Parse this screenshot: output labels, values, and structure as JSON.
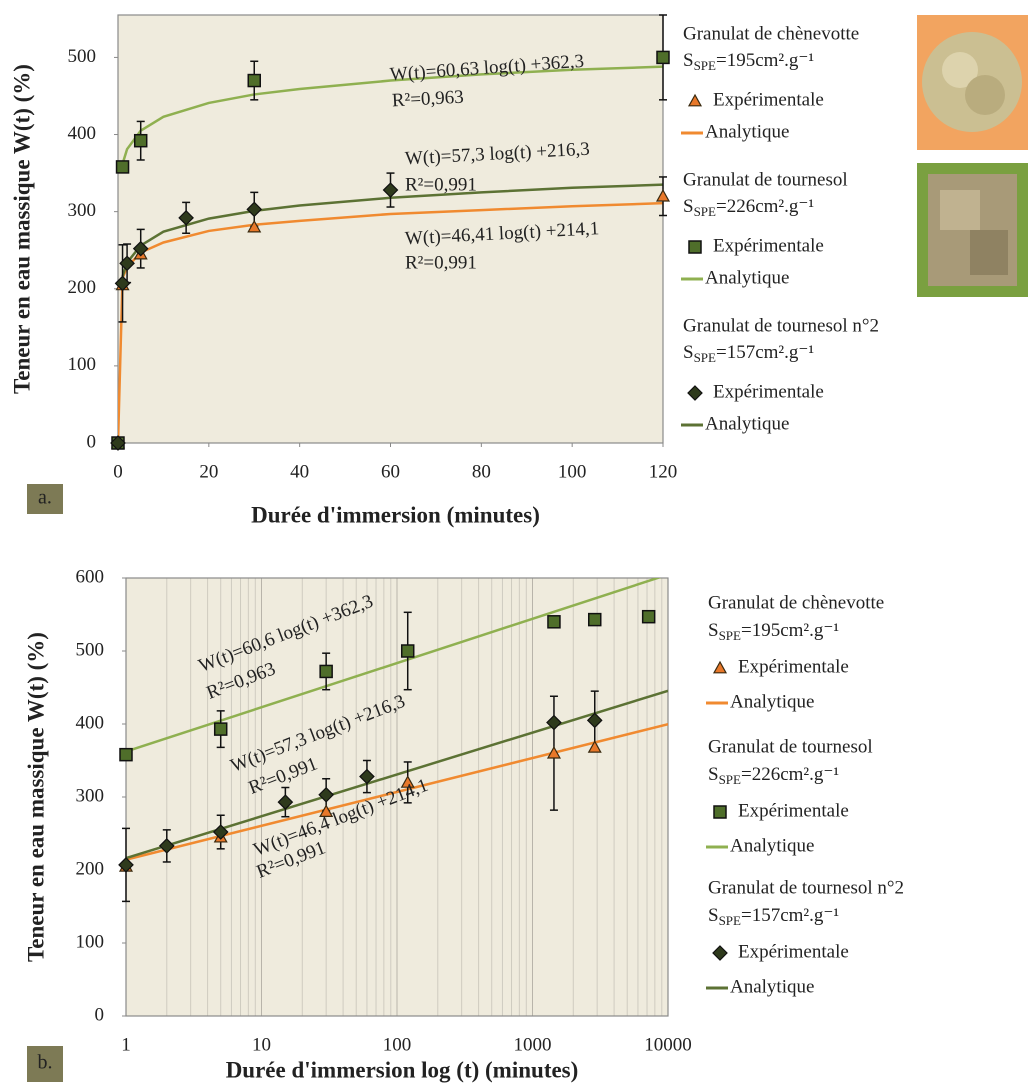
{
  "chart_data": [
    {
      "type": "scatter",
      "panel_label": "a.",
      "x_label": "Durée d'immersion (minutes)",
      "y_label": "Teneur en eau massique W(t) (%)",
      "xlim": [
        0,
        120
      ],
      "xticks": [
        0,
        20,
        40,
        60,
        80,
        100,
        120
      ],
      "ylim": [
        0,
        555
      ],
      "yticks": [
        0,
        100,
        200,
        300,
        400,
        500
      ],
      "xscale": "linear",
      "grid": false,
      "groups": [
        {
          "name": "Granulat de chènevotte",
          "surface": {
            "symbol": "S",
            "subscript": "SPE",
            "rest": "=195cm².g⁻¹"
          },
          "title_color": "#e8782a",
          "points": {
            "name": "Expérimentale",
            "marker": "triangle",
            "color": "#e8782a",
            "x": [
              0,
              1,
              5,
              30,
              120
            ],
            "values": [
              0,
              205,
              245,
              280,
              320
            ],
            "errors": [
              null,
              null,
              null,
              null,
              25
            ]
          },
          "fit": {
            "name": "Analytique",
            "color": "#f08a30",
            "x": [
              0,
              1,
              2,
              5,
              10,
              20,
              30,
              40,
              60,
              80,
              100,
              120
            ],
            "values": [
              0,
              214,
              228,
              247,
              260,
              275,
              283,
              288,
              297,
              302,
              307,
              311
            ]
          }
        },
        {
          "name": "Granulat de tournesol",
          "surface": {
            "symbol": "S",
            "subscript": "SPE",
            "rest": "=226cm².g⁻¹"
          },
          "title_color": "#8aab4f",
          "points": {
            "name": "Expérimentale",
            "marker": "square",
            "color": "#4f6e2a",
            "x": [
              0,
              1,
              5,
              30,
              120
            ],
            "values": [
              0,
              358,
              392,
              470,
              500
            ],
            "errors": [
              null,
              null,
              25,
              25,
              55
            ]
          },
          "fit": {
            "name": "Analytique",
            "color": "#8fb050",
            "x": [
              1,
              2,
              5,
              10,
              20,
              30,
              40,
              60,
              80,
              100,
              120
            ],
            "values": [
              362,
              381,
              405,
              423,
              441,
              452,
              459,
              470,
              478,
              484,
              488
            ]
          }
        },
        {
          "name": "Granulat de tournesol n°2",
          "surface": {
            "symbol": "S",
            "subscript": "SPE",
            "rest": "=157cm².g⁻¹"
          },
          "title_color": "#8aa860",
          "points": {
            "name": "Expérimentale",
            "marker": "diamond",
            "color": "#2e3a1c",
            "x": [
              0,
              1,
              2,
              5,
              15,
              30,
              60
            ],
            "values": [
              0,
              207,
              233,
              252,
              292,
              303,
              328
            ],
            "errors": [
              null,
              50,
              25,
              25,
              20,
              22,
              22
            ]
          },
          "fit": {
            "name": "Analytique",
            "color": "#5c7234",
            "x": [
              1,
              2,
              5,
              10,
              20,
              30,
              40,
              60,
              80,
              100,
              120
            ],
            "values": [
              216,
              234,
              256,
              274,
              291,
              301,
              308,
              318,
              325,
              331,
              335
            ]
          }
        }
      ],
      "annotations": [
        {
          "text": "W(t)=60,63 log(t) +362,3",
          "color": "#8aab4f"
        },
        {
          "text": "R²=0,963",
          "color": "#8aab4f"
        },
        {
          "text": "W(t)=57,3 log(t) +216,3",
          "color": "#8a8a7a"
        },
        {
          "text": "R²=0,991",
          "color": "#8a8a7a"
        },
        {
          "text": "W(t)=46,41 log(t) +214,1",
          "color": "#e8782a"
        },
        {
          "text": "R²=0,991",
          "color": "#e8782a"
        }
      ]
    },
    {
      "type": "scatter",
      "panel_label": "b.",
      "x_label": "Durée d'immersion log (t) (minutes)",
      "y_label": "Teneur en eau massique W(t) (%)",
      "xlim": [
        1,
        10000
      ],
      "xticks": [
        1,
        10,
        100,
        1000,
        10000
      ],
      "xminorticks": [
        2,
        3,
        4,
        5,
        6,
        7,
        8,
        9,
        20,
        30,
        40,
        50,
        60,
        70,
        80,
        90,
        200,
        300,
        400,
        500,
        600,
        700,
        800,
        900,
        2000,
        3000,
        4000,
        5000,
        6000,
        7000,
        8000,
        9000
      ],
      "ylim": [
        0,
        600
      ],
      "yticks": [
        0,
        100,
        200,
        300,
        400,
        500,
        600
      ],
      "xscale": "log",
      "grid": true,
      "groups": [
        {
          "name": "Granulat de chènevotte",
          "surface": {
            "symbol": "S",
            "subscript": "SPE",
            "rest": "=195cm².g⁻¹"
          },
          "title_color": "#e8782a",
          "points": {
            "name": "Expérimentale",
            "marker": "triangle",
            "color": "#e8782a",
            "x": [
              1,
              5,
              30,
              120,
              1440,
              2880
            ],
            "values": [
              205,
              245,
              280,
              320,
              360,
              368
            ],
            "errors": [
              null,
              null,
              null,
              28,
              78,
              null
            ]
          },
          "fit": {
            "name": "Analytique",
            "color": "#f08a30",
            "x": [
              1,
              10000
            ],
            "values": [
              214.1,
              399.7
            ]
          }
        },
        {
          "name": "Granulat de tournesol",
          "surface": {
            "symbol": "S",
            "subscript": "SPE",
            "rest": "=226cm².g⁻¹"
          },
          "title_color": "#8aab4f",
          "points": {
            "name": "Expérimentale",
            "marker": "square",
            "color": "#4f6e2a",
            "x": [
              1,
              5,
              30,
              120,
              1440,
              2880,
              7200
            ],
            "values": [
              358,
              393,
              472,
              500,
              540,
              543,
              547
            ],
            "errors": [
              null,
              25,
              25,
              53,
              null,
              null,
              null
            ]
          },
          "fit": {
            "name": "Analytique",
            "color": "#8fb050",
            "x": [
              1,
              10000
            ],
            "values": [
              362.3,
              604.7
            ]
          }
        },
        {
          "name": "Granulat de tournesol n°2",
          "surface": {
            "symbol": "S",
            "subscript": "SPE",
            "rest": "=157cm².g⁻¹"
          },
          "title_color": "#8aa860",
          "points": {
            "name": "Expérimentale",
            "marker": "diamond",
            "color": "#2e3a1c",
            "x": [
              1,
              2,
              5,
              15,
              30,
              60,
              1440,
              2880
            ],
            "values": [
              207,
              233,
              252,
              293,
              303,
              328,
              402,
              405
            ],
            "errors": [
              50,
              22,
              23,
              20,
              22,
              22,
              null,
              40
            ]
          },
          "fit": {
            "name": "Analytique",
            "color": "#5c7234",
            "x": [
              1,
              10000
            ],
            "values": [
              216.3,
              445.5
            ]
          }
        }
      ],
      "annotations": [
        {
          "text": "W(t)=60,6 log(t) +362,3",
          "color": "#8aab4f"
        },
        {
          "text": "R²=0,963",
          "color": "#8aab4f"
        },
        {
          "text": "W(t)=57,3 log(t) +216,3",
          "color": "#8a8a7a"
        },
        {
          "text": "R²=0,991",
          "color": "#8a8a7a"
        },
        {
          "text": "W(t)=46,4 log(t) +214,1",
          "color": "#e8782a"
        },
        {
          "text": "R²=0,991",
          "color": "#e8782a"
        }
      ]
    }
  ]
}
